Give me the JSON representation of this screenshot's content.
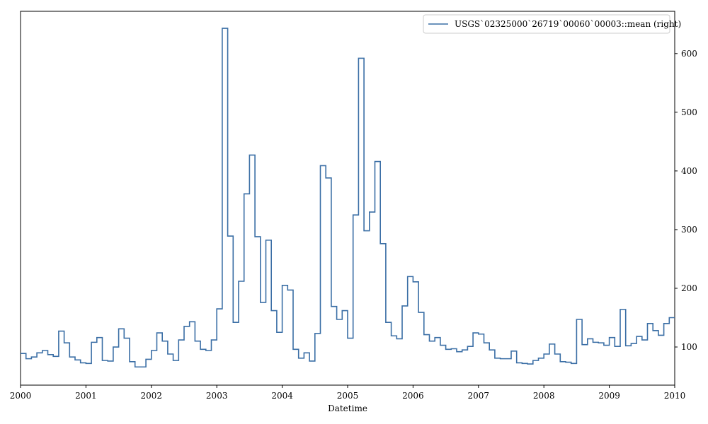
{
  "chart_data": {
    "type": "line",
    "step": true,
    "xlabel": "Datetime",
    "ylabel": "",
    "xlim": [
      "2000-01",
      "2010-01"
    ],
    "ylim": [
      35,
      672
    ],
    "yaxis_side": "right",
    "grid": false,
    "legend_position": "top-right",
    "x_ticks": [
      "2000",
      "2001",
      "2002",
      "2003",
      "2004",
      "2005",
      "2006",
      "2007",
      "2008",
      "2009",
      "2010"
    ],
    "y_ticks": [
      100,
      200,
      300,
      400,
      500,
      600
    ],
    "series": [
      {
        "name": "USGS`02325000`26719`00060`00003::mean (right)",
        "color": "#3a6ea5",
        "x": [
          "2000-01",
          "2000-02",
          "2000-03",
          "2000-04",
          "2000-05",
          "2000-06",
          "2000-07",
          "2000-08",
          "2000-09",
          "2000-10",
          "2000-11",
          "2000-12",
          "2001-01",
          "2001-02",
          "2001-03",
          "2001-04",
          "2001-05",
          "2001-06",
          "2001-07",
          "2001-08",
          "2001-09",
          "2001-10",
          "2001-11",
          "2001-12",
          "2002-01",
          "2002-02",
          "2002-03",
          "2002-04",
          "2002-05",
          "2002-06",
          "2002-07",
          "2002-08",
          "2002-09",
          "2002-10",
          "2002-11",
          "2002-12",
          "2003-01",
          "2003-02",
          "2003-03",
          "2003-04",
          "2003-05",
          "2003-06",
          "2003-07",
          "2003-08",
          "2003-09",
          "2003-10",
          "2003-11",
          "2003-12",
          "2004-01",
          "2004-02",
          "2004-03",
          "2004-04",
          "2004-05",
          "2004-06",
          "2004-07",
          "2004-08",
          "2004-09",
          "2004-10",
          "2004-11",
          "2004-12",
          "2005-01",
          "2005-02",
          "2005-03",
          "2005-04",
          "2005-05",
          "2005-06",
          "2005-07",
          "2005-08",
          "2005-09",
          "2005-10",
          "2005-11",
          "2005-12",
          "2006-01",
          "2006-02",
          "2006-03",
          "2006-04",
          "2006-05",
          "2006-06",
          "2006-07",
          "2006-08",
          "2006-09",
          "2006-10",
          "2006-11",
          "2006-12",
          "2007-01",
          "2007-02",
          "2007-03",
          "2007-04",
          "2007-05",
          "2007-06",
          "2007-07",
          "2007-08",
          "2007-09",
          "2007-10",
          "2007-11",
          "2007-12",
          "2008-01",
          "2008-02",
          "2008-03",
          "2008-04",
          "2008-05",
          "2008-06",
          "2008-07",
          "2008-08",
          "2008-09",
          "2008-10",
          "2008-11",
          "2008-12",
          "2009-01",
          "2009-02",
          "2009-03",
          "2009-04",
          "2009-05",
          "2009-06",
          "2009-07",
          "2009-08",
          "2009-09",
          "2009-10",
          "2009-11",
          "2009-12"
        ],
        "values": [
          89,
          80,
          83,
          90,
          94,
          87,
          84,
          127,
          107,
          83,
          78,
          73,
          72,
          108,
          116,
          77,
          76,
          100,
          131,
          115,
          75,
          66,
          66,
          79,
          94,
          124,
          110,
          88,
          77,
          112,
          135,
          143,
          110,
          96,
          94,
          112,
          165,
          643,
          289,
          142,
          212,
          361,
          427,
          288,
          176,
          282,
          162,
          125,
          205,
          197,
          96,
          81,
          90,
          76,
          123,
          409,
          388,
          169,
          147,
          162,
          115,
          325,
          592,
          298,
          330,
          416,
          276,
          142,
          119,
          114,
          170,
          220,
          211,
          159,
          121,
          110,
          116,
          103,
          96,
          97,
          92,
          95,
          101,
          124,
          122,
          107,
          95,
          81,
          80,
          80,
          93,
          73,
          72,
          71,
          77,
          81,
          88,
          105,
          88,
          75,
          74,
          72,
          147,
          104,
          114,
          108,
          107,
          103,
          116,
          101,
          164,
          102,
          106,
          118,
          112,
          140,
          128,
          120,
          140,
          150
        ]
      }
    ]
  }
}
